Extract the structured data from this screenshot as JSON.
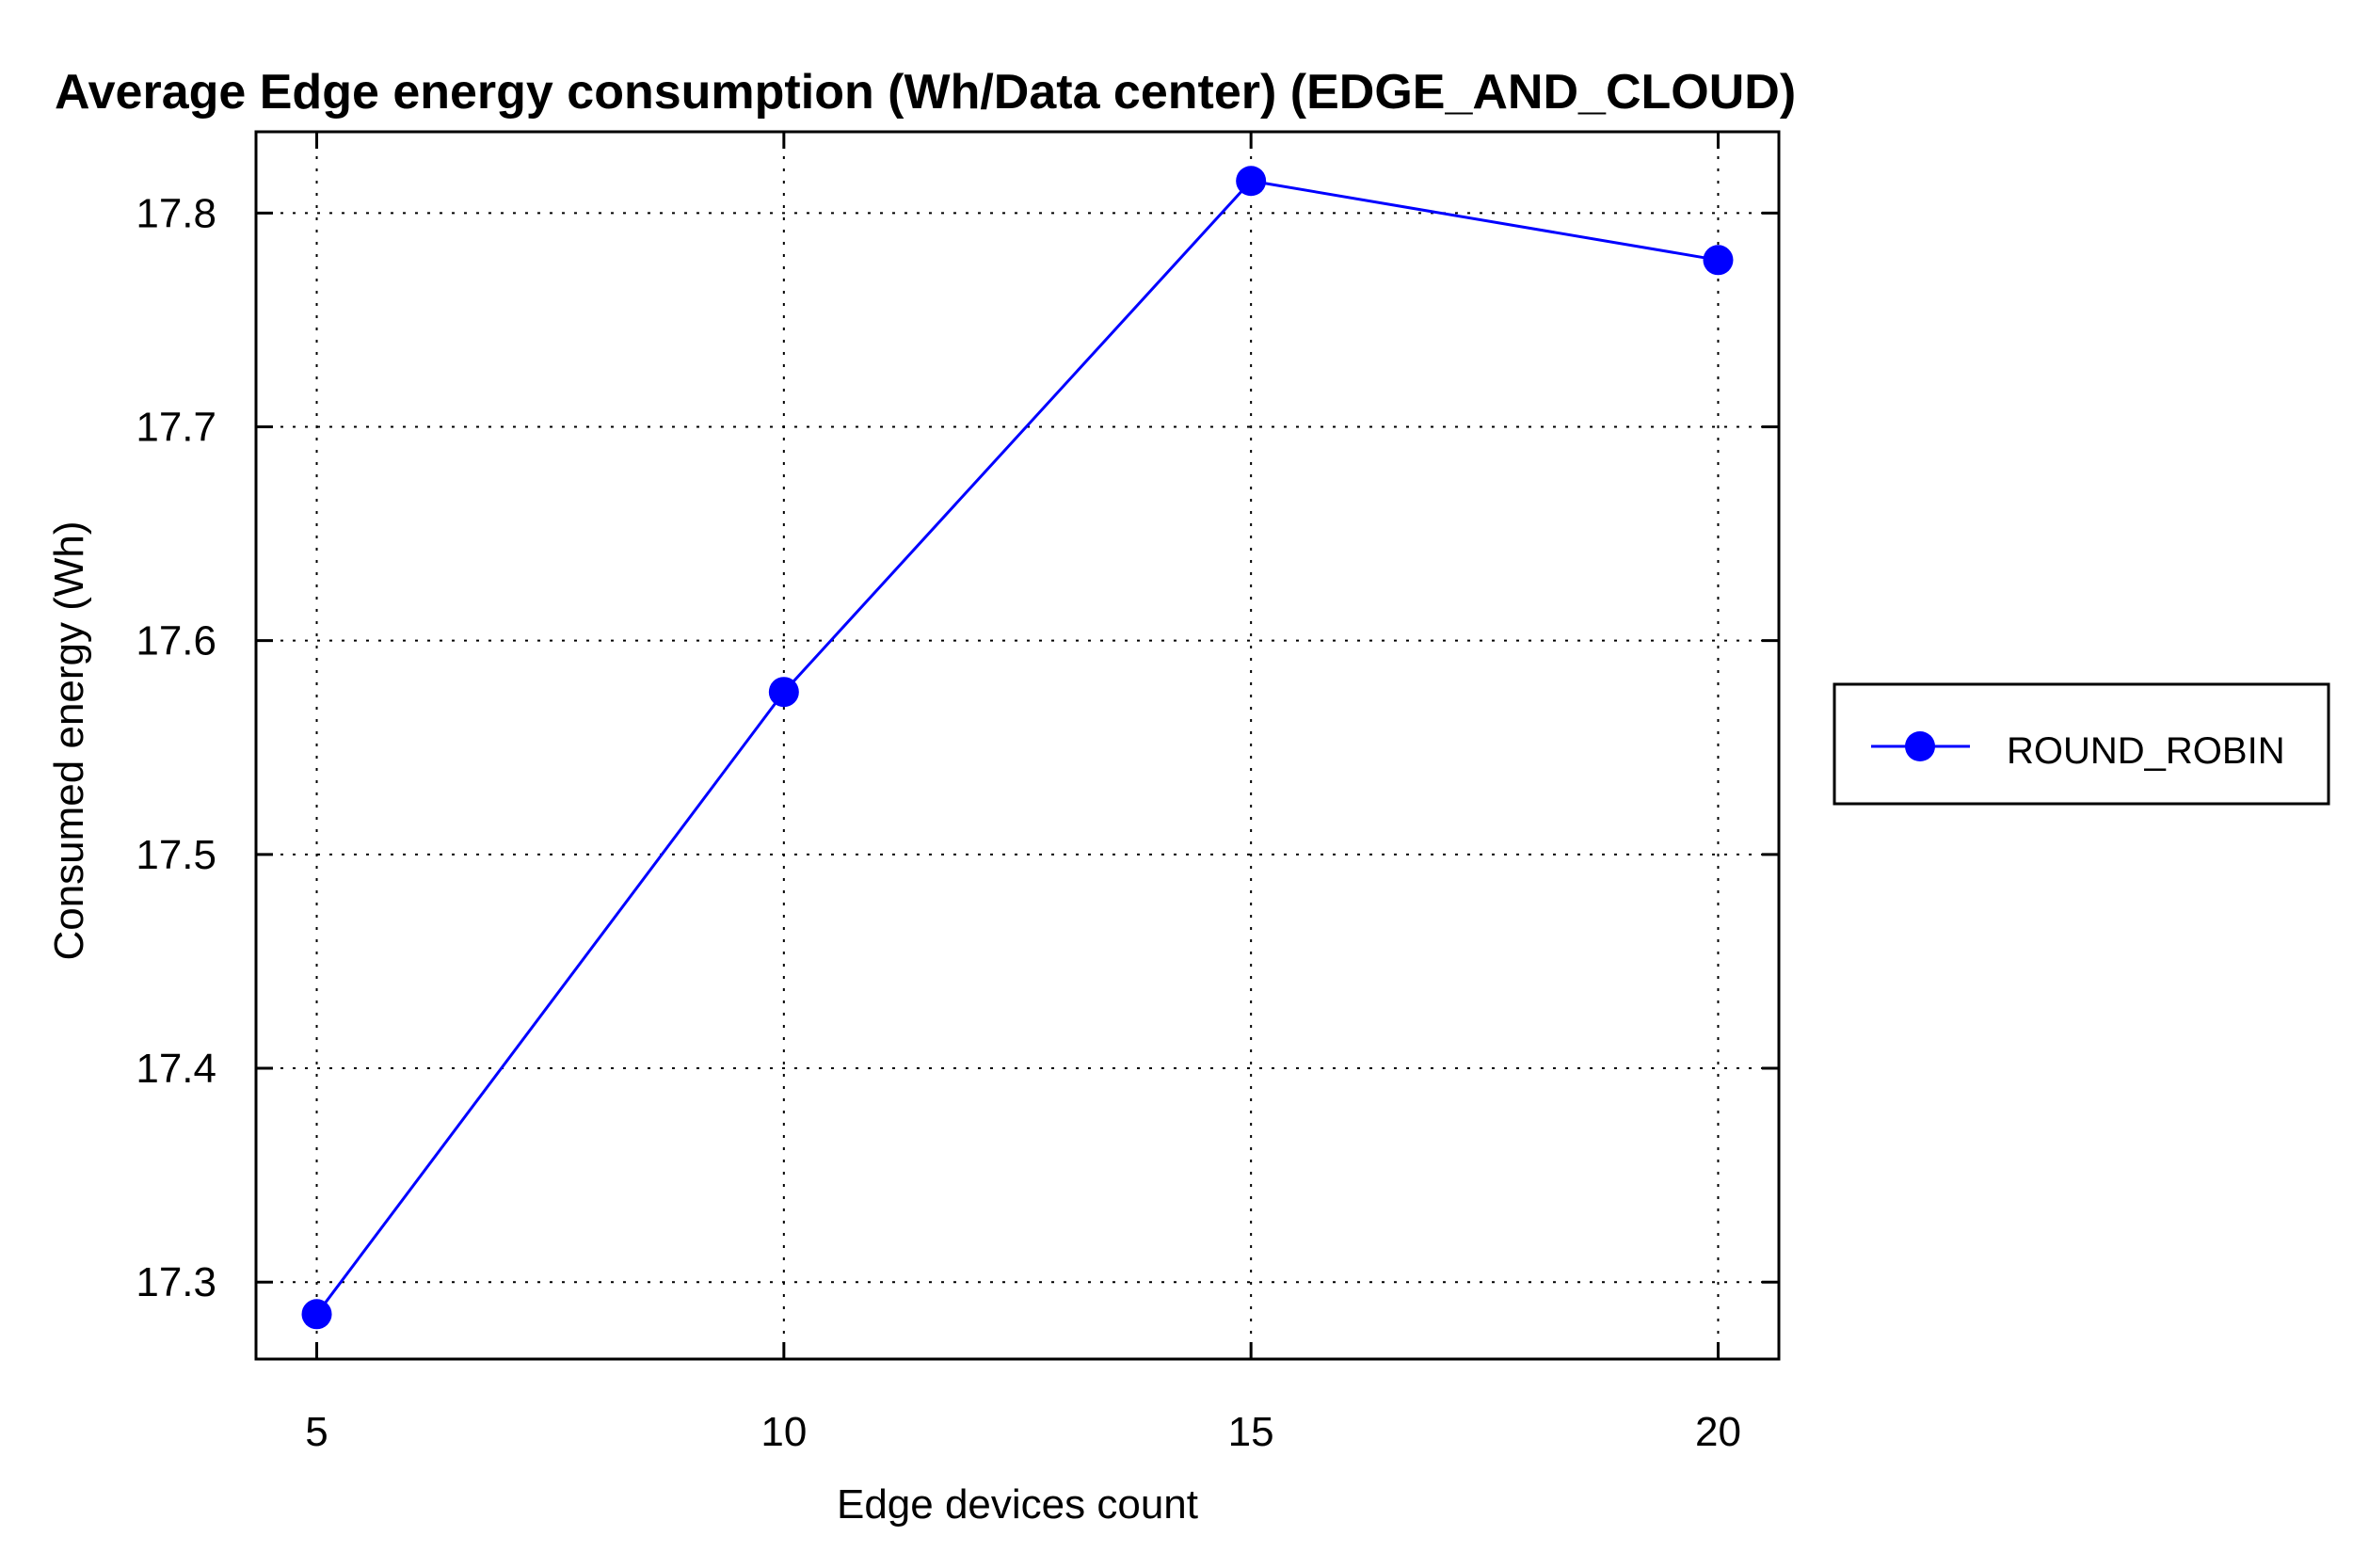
{
  "chart_data": {
    "type": "line",
    "title": "Average Edge energy consumption (Wh/Data center) (EDGE_AND_CLOUD)",
    "xlabel": "Edge devices count",
    "ylabel": "Consumed energy (Wh)",
    "x": [
      5,
      10,
      15,
      20
    ],
    "xticks": [
      "5",
      "10",
      "15",
      "20"
    ],
    "yticks": [
      "17.3",
      "17.4",
      "17.5",
      "17.6",
      "17.7",
      "17.8"
    ],
    "xlim": [
      4.35,
      20.65
    ],
    "ylim": [
      17.264,
      17.838
    ],
    "grid": true,
    "legend_position": "right",
    "series": [
      {
        "name": "ROUND_ROBIN",
        "color": "#0000ff",
        "marker": "circle",
        "values": [
          17.285,
          17.576,
          17.815,
          17.778
        ]
      }
    ]
  }
}
